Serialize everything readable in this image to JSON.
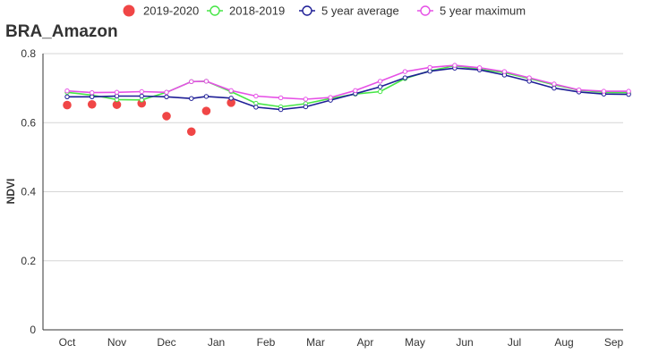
{
  "chart_data": {
    "type": "line",
    "title": "BRA_Amazon",
    "xlabel": "",
    "ylabel": "NDVI",
    "categories": [
      "Oct",
      "Nov",
      "Dec",
      "Jan",
      "Feb",
      "Mar",
      "Apr",
      "May",
      "Jun",
      "Jul",
      "Aug",
      "Sep"
    ],
    "yticks": [
      "0",
      "0.2",
      "0.4",
      "0.6",
      "0.8"
    ],
    "ylim": [
      0,
      0.8
    ],
    "x_range": [
      0,
      11.5
    ],
    "grid": "horizontal",
    "legend_position": "top",
    "series": [
      {
        "name": "2019-2020",
        "style": "markers",
        "color": "#f04646",
        "x": [
          0,
          0.5,
          1,
          1.5,
          2,
          2.5,
          2.8,
          3.3
        ],
        "values": [
          0.651,
          0.653,
          0.652,
          0.656,
          0.619,
          0.574,
          0.634,
          0.658
        ]
      },
      {
        "name": "2018-2019",
        "style": "line-open-markers",
        "color": "#46e646",
        "x": [
          0,
          0.5,
          1,
          1.5,
          2,
          2.5,
          2.8,
          3.3,
          3.8,
          4.3,
          4.8,
          5.3,
          5.8,
          6.3,
          6.8,
          7.3,
          7.8,
          8.3,
          8.8,
          9.3,
          9.8,
          10.3,
          10.8,
          11.3
        ],
        "values": [
          0.688,
          0.68,
          0.667,
          0.666,
          0.688,
          0.719,
          0.72,
          0.69,
          0.656,
          0.646,
          0.655,
          0.67,
          0.683,
          0.69,
          0.728,
          0.75,
          0.765,
          0.755,
          0.745,
          0.728,
          0.71,
          0.694,
          0.688,
          0.687
        ]
      },
      {
        "name": "5 year average",
        "style": "line-open-markers",
        "color": "#1e1e96",
        "x": [
          0,
          0.5,
          1,
          1.5,
          2,
          2.5,
          2.8,
          3.3,
          3.8,
          4.3,
          4.8,
          5.3,
          5.8,
          6.3,
          6.8,
          7.3,
          7.8,
          8.3,
          8.8,
          9.3,
          9.8,
          10.3,
          10.8,
          11.3
        ],
        "values": [
          0.675,
          0.675,
          0.677,
          0.677,
          0.675,
          0.67,
          0.676,
          0.671,
          0.645,
          0.638,
          0.646,
          0.665,
          0.684,
          0.704,
          0.73,
          0.749,
          0.758,
          0.753,
          0.738,
          0.72,
          0.7,
          0.689,
          0.683,
          0.682
        ]
      },
      {
        "name": "5 year maximum",
        "style": "line-open-markers",
        "color": "#e650e6",
        "x": [
          0,
          0.5,
          1,
          1.5,
          2,
          2.5,
          2.8,
          3.3,
          3.8,
          4.3,
          4.8,
          5.3,
          5.8,
          6.3,
          6.8,
          7.3,
          7.8,
          8.3,
          8.8,
          9.3,
          9.8,
          10.3,
          10.8,
          11.3
        ],
        "values": [
          0.692,
          0.687,
          0.688,
          0.69,
          0.688,
          0.719,
          0.72,
          0.693,
          0.677,
          0.672,
          0.668,
          0.673,
          0.693,
          0.72,
          0.748,
          0.76,
          0.766,
          0.759,
          0.748,
          0.73,
          0.712,
          0.695,
          0.691,
          0.691
        ]
      }
    ]
  }
}
